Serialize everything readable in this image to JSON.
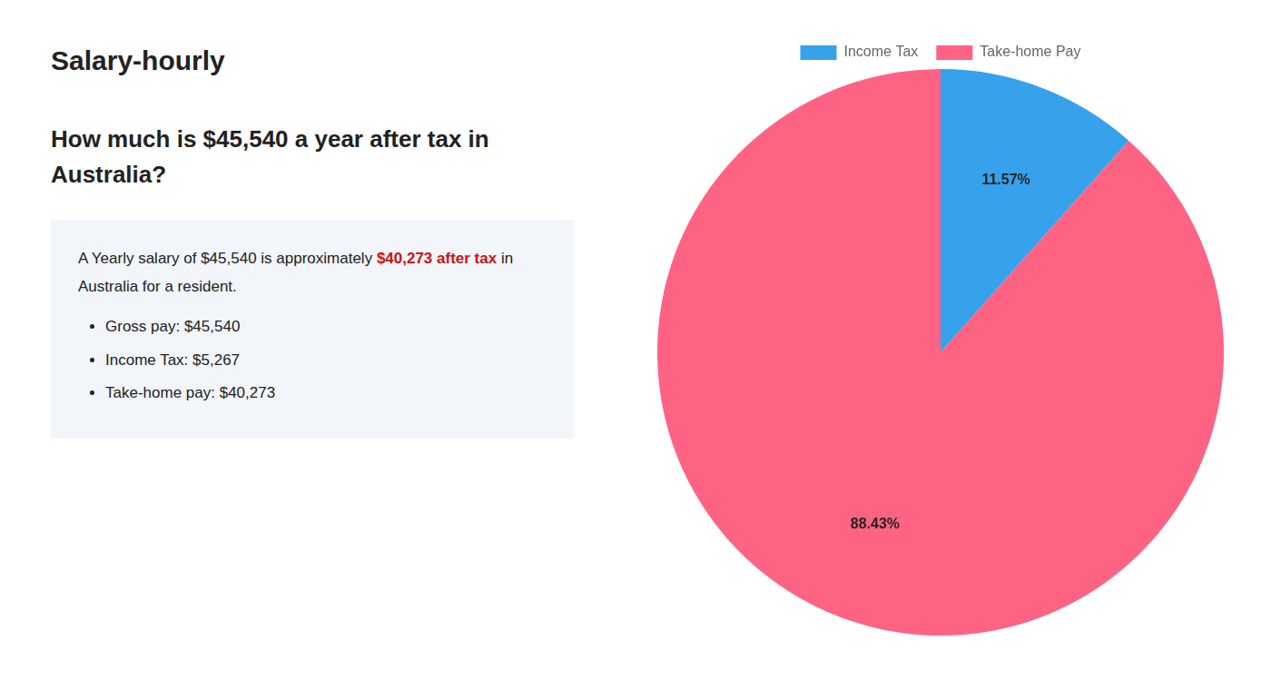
{
  "chart_data": {
    "type": "pie",
    "title": [
      "How much is $45,540 a year after tax in",
      "Australia?"
    ],
    "annotations": [
      [
        "S",
        "alary-hourly"
      ],
      [
        "A Yearly salary of $45,540 is approximately ",
        {
          "text": "$40,273 after tax",
          "color": "#cc1111"
        },
        " in"
      ],
      [
        "Australia for a resident."
      ],
      [
        "Gross pay: $45,540"
      ],
      [
        "Income Tax: $5,267"
      ],
      [
        "Take-home pay: $40,273"
      ]
    ],
    "categories": [
      "Income Tax",
      "Take-home Pay"
    ],
    "values": [
      11.57,
      88.43
    ],
    "value_labels": [
      "11.57%",
      "88.43%"
    ],
    "data_labels": true,
    "legend": "top"
  }
}
